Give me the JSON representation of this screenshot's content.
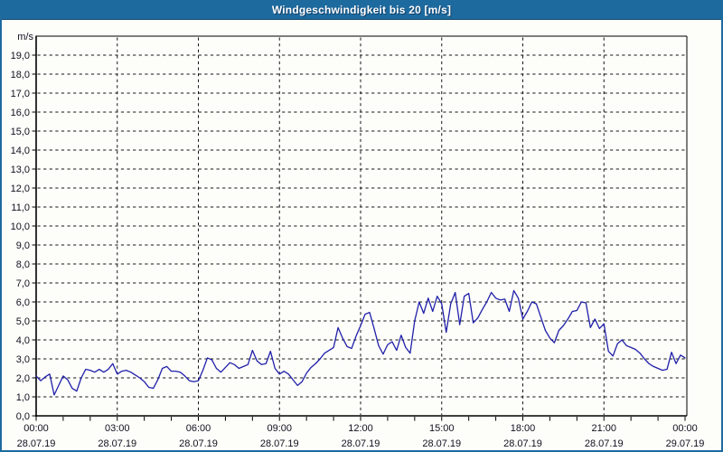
{
  "window": {
    "title": "Windgeschwindigkeit bis 20 [m/s]"
  },
  "colors": {
    "titlebar": "#1d6a9f",
    "frame": "#1d6a9f",
    "background": "#fdfdfa",
    "grid": "#141414",
    "axis": "#000000",
    "axis_text": "#10101e",
    "line": "#2020aa"
  },
  "chart_data": {
    "type": "line",
    "title": "Windgeschwindigkeit bis 20 [m/s]",
    "ylabel": "m/s",
    "xlabel": "",
    "grid": true,
    "legend_position": "none",
    "y_axis": {
      "unit": "m/s",
      "min": 0,
      "max": 20,
      "tick_step": 1,
      "labeled_tick_min": 0,
      "labeled_tick_max": 19,
      "decimal_separator": ","
    },
    "x_axis": {
      "start_label": "00:00 28.07.19",
      "end_label": "00:00 29.07.19",
      "minor_tick_minutes": 60,
      "major_tick_minutes": 180,
      "major_ticks": [
        {
          "time": "00:00",
          "date": "28.07.19"
        },
        {
          "time": "03:00",
          "date": "28.07.19"
        },
        {
          "time": "06:00",
          "date": "28.07.19"
        },
        {
          "time": "09:00",
          "date": "28.07.19"
        },
        {
          "time": "12:00",
          "date": "28.07.19"
        },
        {
          "time": "15:00",
          "date": "28.07.19"
        },
        {
          "time": "18:00",
          "date": "28.07.19"
        },
        {
          "time": "21:00",
          "date": "28.07.19"
        },
        {
          "time": "00:00",
          "date": "29.07.19"
        }
      ]
    },
    "series": [
      {
        "name": "Windgeschwindigkeit",
        "unit": "m/s",
        "sample_interval_minutes": 10,
        "start_minute": 0,
        "values": [
          2.1,
          1.85,
          2.05,
          2.2,
          1.1,
          1.6,
          2.1,
          1.9,
          1.45,
          1.3,
          2.0,
          2.45,
          2.4,
          2.3,
          2.45,
          2.3,
          2.45,
          2.75,
          2.2,
          2.35,
          2.4,
          2.3,
          2.15,
          2.0,
          1.8,
          1.5,
          1.45,
          1.9,
          2.5,
          2.6,
          2.35,
          2.35,
          2.3,
          2.1,
          1.85,
          1.8,
          1.85,
          2.4,
          3.05,
          2.95,
          2.5,
          2.3,
          2.55,
          2.8,
          2.7,
          2.5,
          2.6,
          2.7,
          3.45,
          2.9,
          2.7,
          2.75,
          3.4,
          2.5,
          2.2,
          2.35,
          2.2,
          1.9,
          1.6,
          1.8,
          2.25,
          2.55,
          2.75,
          3.0,
          3.3,
          3.45,
          3.6,
          4.65,
          4.1,
          3.65,
          3.55,
          4.2,
          4.75,
          5.35,
          5.45,
          4.6,
          3.7,
          3.25,
          3.75,
          3.9,
          3.45,
          4.25,
          3.6,
          3.3,
          5.0,
          6.0,
          5.4,
          6.2,
          5.5,
          6.3,
          5.9,
          4.4,
          5.9,
          6.5,
          4.8,
          6.3,
          6.45,
          4.9,
          5.15,
          5.6,
          6.0,
          6.5,
          6.2,
          6.1,
          6.15,
          5.5,
          6.6,
          6.2,
          5.1,
          5.5,
          6.0,
          5.9,
          5.2,
          4.5,
          4.1,
          3.85,
          4.5,
          4.75,
          5.1,
          5.5,
          5.55,
          6.0,
          5.95,
          4.65,
          5.1,
          4.6,
          4.85,
          3.4,
          3.15,
          3.8,
          4.0,
          3.7,
          3.6,
          3.5,
          3.3,
          3.0,
          2.75,
          2.6,
          2.5,
          2.4,
          2.45,
          3.35,
          2.75,
          3.2,
          3.05
        ]
      }
    ]
  }
}
